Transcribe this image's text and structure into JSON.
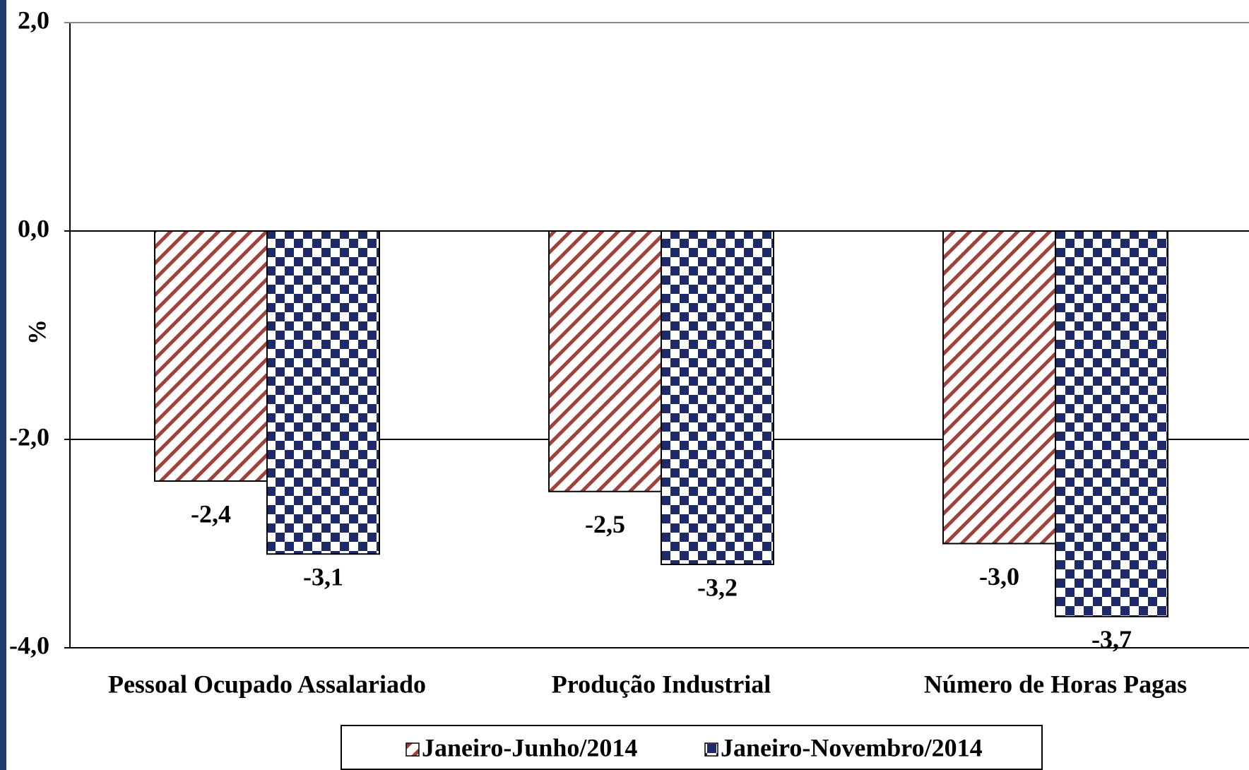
{
  "chart_data": {
    "type": "bar",
    "y_label": "%",
    "categories": [
      "Pessoal Ocupado Assalariado",
      "Produção Industrial",
      "Número de Horas Pagas"
    ],
    "series": [
      {
        "name": "Janeiro-Junho/2014",
        "color": "#a0413c",
        "values": [
          -2.4,
          -2.5,
          -3.0
        ],
        "value_labels": [
          "-2,4",
          "-2,5",
          "-3,0"
        ]
      },
      {
        "name": "Janeiro-Novembro/2014",
        "color": "#1f2a6b",
        "values": [
          -3.1,
          -3.2,
          -3.7
        ],
        "value_labels": [
          "-3,1",
          "-3,2",
          "-3,7"
        ]
      }
    ],
    "ylim": [
      -4,
      2
    ],
    "yticks": [
      {
        "value": 2,
        "label": "2,0"
      },
      {
        "value": 0,
        "label": "0,0"
      },
      {
        "value": -2,
        "label": "-2,0"
      },
      {
        "value": -4,
        "label": "-4,0"
      }
    ],
    "grid": true
  }
}
